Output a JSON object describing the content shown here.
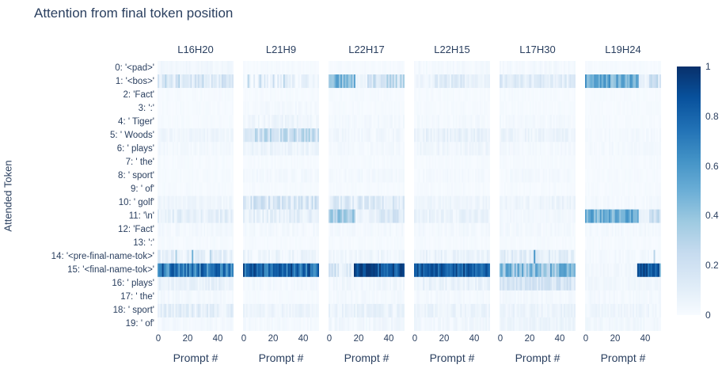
{
  "figure": {
    "title": "Attention from final token position"
  },
  "chart_data": {
    "type": "heatmap",
    "title": "Attention from final token position",
    "xlabel": "Prompt #",
    "ylabel": "Attended Token",
    "x_tick_labels": [
      "0",
      "20",
      "40"
    ],
    "x_range": [
      0,
      51
    ],
    "zmin": 0,
    "zmax": 1,
    "colorscale": "Blues",
    "legend_position": "right-colorbar",
    "colorbar_tick_labels": [
      "1",
      "0.8",
      "0.6",
      "0.4",
      "0.2",
      "0"
    ],
    "y_labels": [
      "0: '<pad>'",
      "1: '<bos>'",
      "2: 'Fact'",
      "3: ':'",
      "4: ' Tiger'",
      "5: ' Woods'",
      "6: ' plays'",
      "7: ' the'",
      "8: ' sport'",
      "9: ' of'",
      "10: ' golf'",
      "11: '\\n'",
      "12: 'Fact'",
      "13: ':'",
      "14: '<pre-final-name-tok>'",
      "15: '<final-name-tok>'",
      "16: ' plays'",
      "17: ' the'",
      "18: ' sport'",
      "19: ' of'"
    ],
    "rows_note": "each row = segments [xStart,xEnd,meanValue,noiseAmplitude] over prompts 0-51; spikes = [promptX, value] outliers",
    "panels": [
      {
        "name": "L16H20",
        "rows": [
          [
            [
              0,
              51,
              0.03,
              0.02
            ]
          ],
          [
            [
              0,
              51,
              0.13,
              0.1
            ]
          ],
          [
            [
              0,
              51,
              0.01,
              0.01
            ]
          ],
          [
            [
              0,
              51,
              0.01,
              0.01
            ]
          ],
          [
            [
              0,
              51,
              0.01,
              0.01
            ]
          ],
          [
            [
              0,
              51,
              0.04,
              0.03
            ]
          ],
          [
            [
              0,
              51,
              0.02,
              0.02
            ]
          ],
          [
            [
              0,
              51,
              0.01,
              0.01
            ]
          ],
          [
            [
              0,
              51,
              0.01,
              0.01
            ]
          ],
          [
            [
              0,
              51,
              0.01,
              0.01
            ]
          ],
          [
            [
              0,
              51,
              0.04,
              0.03
            ]
          ],
          [
            [
              0,
              51,
              0.09,
              0.07
            ]
          ],
          [
            [
              0,
              51,
              0.02,
              0.02
            ]
          ],
          [
            [
              0,
              51,
              0.01,
              0.01
            ]
          ],
          [
            [
              0,
              51,
              0.08,
              0.08
            ]
          ],
          [
            [
              0,
              51,
              0.72,
              0.2
            ]
          ],
          [
            [
              0,
              51,
              0.07,
              0.05
            ]
          ],
          [
            [
              0,
              51,
              0.02,
              0.02
            ]
          ],
          [
            [
              0,
              51,
              0.09,
              0.07
            ]
          ],
          [
            [
              0,
              51,
              0.02,
              0.02
            ]
          ]
        ],
        "spikes": {
          "1": [
            [
              5,
              0.3
            ],
            [
              14,
              0.32
            ],
            [
              30,
              0.28
            ],
            [
              43,
              0.25
            ]
          ],
          "14": [
            [
              12,
              0.35
            ],
            [
              23,
              0.5
            ],
            [
              35,
              0.3
            ]
          ]
        }
      },
      {
        "name": "L21H9",
        "rows": [
          [
            [
              0,
              51,
              0.01,
              0.01
            ]
          ],
          [
            [
              0,
              51,
              0.07,
              0.1
            ]
          ],
          [
            [
              0,
              51,
              0.01,
              0.01
            ]
          ],
          [
            [
              0,
              51,
              0.02,
              0.02
            ]
          ],
          [
            [
              0,
              51,
              0.04,
              0.04
            ]
          ],
          [
            [
              0,
              51,
              0.22,
              0.15
            ]
          ],
          [
            [
              0,
              51,
              0.05,
              0.04
            ]
          ],
          [
            [
              0,
              51,
              0.01,
              0.01
            ]
          ],
          [
            [
              0,
              51,
              0.02,
              0.02
            ]
          ],
          [
            [
              0,
              51,
              0.01,
              0.01
            ]
          ],
          [
            [
              0,
              51,
              0.16,
              0.12
            ]
          ],
          [
            [
              0,
              51,
              0.08,
              0.07
            ]
          ],
          [
            [
              0,
              51,
              0.02,
              0.02
            ]
          ],
          [
            [
              0,
              51,
              0.01,
              0.01
            ]
          ],
          [
            [
              0,
              51,
              0.05,
              0.06
            ]
          ],
          [
            [
              0,
              51,
              0.78,
              0.18
            ]
          ],
          [
            [
              0,
              51,
              0.02,
              0.02
            ]
          ],
          [
            [
              0,
              51,
              0.01,
              0.01
            ]
          ],
          [
            [
              0,
              51,
              0.05,
              0.04
            ]
          ],
          [
            [
              0,
              51,
              0.02,
              0.02
            ]
          ]
        ],
        "spikes": {
          "1": [
            [
              3,
              0.3
            ],
            [
              11,
              0.28
            ],
            [
              20,
              0.25
            ],
            [
              27,
              0.3
            ]
          ]
        }
      },
      {
        "name": "L22H17",
        "rows": [
          [
            [
              0,
              51,
              0.01,
              0.01
            ]
          ],
          [
            [
              0,
              18,
              0.45,
              0.15
            ],
            [
              18,
              26,
              0.05,
              0.04
            ],
            [
              26,
              51,
              0.22,
              0.15
            ]
          ],
          [
            [
              0,
              51,
              0.01,
              0.01
            ]
          ],
          [
            [
              0,
              51,
              0.01,
              0.01
            ]
          ],
          [
            [
              0,
              51,
              0.02,
              0.02
            ]
          ],
          [
            [
              0,
              51,
              0.03,
              0.03
            ]
          ],
          [
            [
              0,
              51,
              0.02,
              0.02
            ]
          ],
          [
            [
              0,
              51,
              0.01,
              0.01
            ]
          ],
          [
            [
              0,
              51,
              0.02,
              0.02
            ]
          ],
          [
            [
              0,
              51,
              0.01,
              0.01
            ]
          ],
          [
            [
              0,
              51,
              0.12,
              0.1
            ]
          ],
          [
            [
              0,
              18,
              0.35,
              0.12
            ],
            [
              18,
              32,
              0.06,
              0.05
            ],
            [
              32,
              51,
              0.14,
              0.1
            ]
          ],
          [
            [
              0,
              51,
              0.02,
              0.02
            ]
          ],
          [
            [
              0,
              51,
              0.01,
              0.01
            ]
          ],
          [
            [
              0,
              51,
              0.04,
              0.04
            ]
          ],
          [
            [
              0,
              17,
              0.15,
              0.12
            ],
            [
              17,
              51,
              0.85,
              0.13
            ]
          ],
          [
            [
              0,
              51,
              0.03,
              0.03
            ]
          ],
          [
            [
              0,
              51,
              0.02,
              0.02
            ]
          ],
          [
            [
              0,
              51,
              0.06,
              0.05
            ]
          ],
          [
            [
              0,
              51,
              0.03,
              0.03
            ]
          ]
        ],
        "spikes": {}
      },
      {
        "name": "L22H15",
        "rows": [
          [
            [
              0,
              51,
              0.02,
              0.02
            ]
          ],
          [
            [
              0,
              14,
              0.04,
              0.03
            ],
            [
              14,
              34,
              0.12,
              0.08
            ],
            [
              34,
              51,
              0.06,
              0.05
            ]
          ],
          [
            [
              0,
              51,
              0.01,
              0.01
            ]
          ],
          [
            [
              0,
              51,
              0.01,
              0.01
            ]
          ],
          [
            [
              0,
              51,
              0.02,
              0.02
            ]
          ],
          [
            [
              0,
              51,
              0.07,
              0.05
            ]
          ],
          [
            [
              0,
              51,
              0.04,
              0.03
            ]
          ],
          [
            [
              0,
              51,
              0.01,
              0.01
            ]
          ],
          [
            [
              0,
              51,
              0.02,
              0.02
            ]
          ],
          [
            [
              0,
              51,
              0.01,
              0.01
            ]
          ],
          [
            [
              0,
              51,
              0.04,
              0.03
            ]
          ],
          [
            [
              0,
              51,
              0.06,
              0.05
            ]
          ],
          [
            [
              0,
              51,
              0.02,
              0.02
            ]
          ],
          [
            [
              0,
              51,
              0.01,
              0.01
            ]
          ],
          [
            [
              0,
              51,
              0.06,
              0.05
            ]
          ],
          [
            [
              0,
              51,
              0.82,
              0.13
            ]
          ],
          [
            [
              0,
              51,
              0.07,
              0.05
            ]
          ],
          [
            [
              0,
              51,
              0.02,
              0.02
            ]
          ],
          [
            [
              0,
              51,
              0.06,
              0.04
            ]
          ],
          [
            [
              0,
              51,
              0.03,
              0.03
            ]
          ]
        ],
        "spikes": {}
      },
      {
        "name": "L17H30",
        "rows": [
          [
            [
              0,
              51,
              0.02,
              0.02
            ]
          ],
          [
            [
              0,
              51,
              0.11,
              0.08
            ]
          ],
          [
            [
              0,
              51,
              0.01,
              0.01
            ]
          ],
          [
            [
              0,
              51,
              0.01,
              0.01
            ]
          ],
          [
            [
              0,
              51,
              0.02,
              0.02
            ]
          ],
          [
            [
              0,
              51,
              0.05,
              0.04
            ]
          ],
          [
            [
              0,
              51,
              0.02,
              0.02
            ]
          ],
          [
            [
              0,
              51,
              0.01,
              0.01
            ]
          ],
          [
            [
              0,
              51,
              0.02,
              0.02
            ]
          ],
          [
            [
              0,
              51,
              0.01,
              0.01
            ]
          ],
          [
            [
              0,
              51,
              0.05,
              0.04
            ]
          ],
          [
            [
              0,
              51,
              0.03,
              0.02
            ]
          ],
          [
            [
              0,
              51,
              0.02,
              0.02
            ]
          ],
          [
            [
              0,
              51,
              0.01,
              0.01
            ]
          ],
          [
            [
              0,
              51,
              0.1,
              0.08
            ]
          ],
          [
            [
              0,
              51,
              0.42,
              0.18
            ]
          ],
          [
            [
              0,
              51,
              0.16,
              0.08
            ]
          ],
          [
            [
              0,
              51,
              0.02,
              0.02
            ]
          ],
          [
            [
              0,
              51,
              0.06,
              0.04
            ]
          ],
          [
            [
              0,
              51,
              0.05,
              0.03
            ]
          ]
        ],
        "spikes": {
          "14": [
            [
              23,
              0.62
            ]
          ]
        }
      },
      {
        "name": "L19H24",
        "rows": [
          [
            [
              0,
              51,
              0.01,
              0.01
            ]
          ],
          [
            [
              0,
              36,
              0.5,
              0.15
            ],
            [
              36,
              43,
              0.06,
              0.04
            ],
            [
              43,
              51,
              0.18,
              0.12
            ]
          ],
          [
            [
              0,
              51,
              0.01,
              0.01
            ]
          ],
          [
            [
              0,
              51,
              0.01,
              0.01
            ]
          ],
          [
            [
              0,
              51,
              0.01,
              0.01
            ]
          ],
          [
            [
              0,
              51,
              0.02,
              0.02
            ]
          ],
          [
            [
              0,
              51,
              0.02,
              0.02
            ]
          ],
          [
            [
              0,
              51,
              0.01,
              0.01
            ]
          ],
          [
            [
              0,
              51,
              0.01,
              0.01
            ]
          ],
          [
            [
              0,
              51,
              0.01,
              0.01
            ]
          ],
          [
            [
              0,
              51,
              0.02,
              0.02
            ]
          ],
          [
            [
              0,
              36,
              0.5,
              0.15
            ],
            [
              36,
              43,
              0.06,
              0.04
            ],
            [
              43,
              51,
              0.18,
              0.12
            ]
          ],
          [
            [
              0,
              51,
              0.02,
              0.02
            ]
          ],
          [
            [
              0,
              51,
              0.01,
              0.01
            ]
          ],
          [
            [
              0,
              51,
              0.02,
              0.02
            ]
          ],
          [
            [
              0,
              35,
              0.03,
              0.02
            ],
            [
              35,
              50,
              0.85,
              0.12
            ],
            [
              50,
              51,
              0.35,
              0.1
            ]
          ],
          [
            [
              0,
              51,
              0.03,
              0.02
            ]
          ],
          [
            [
              0,
              51,
              0.02,
              0.02
            ]
          ],
          [
            [
              0,
              51,
              0.04,
              0.03
            ]
          ],
          [
            [
              0,
              51,
              0.03,
              0.02
            ]
          ]
        ],
        "spikes": {
          "14": [
            [
              46,
              0.3
            ]
          ]
        }
      }
    ]
  }
}
